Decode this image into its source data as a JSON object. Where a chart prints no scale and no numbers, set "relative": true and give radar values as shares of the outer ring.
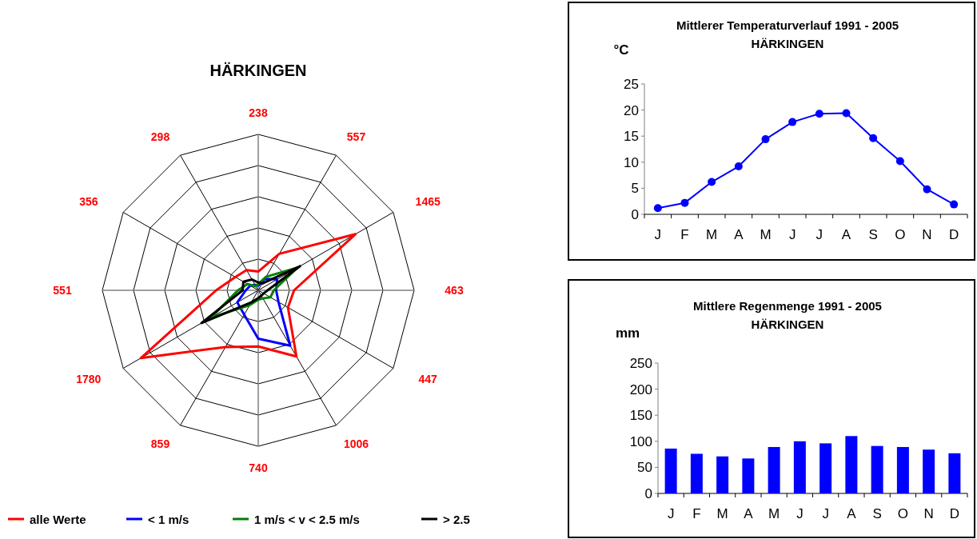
{
  "chart_data": [
    {
      "type": "radar",
      "title": "HÄRKINGEN",
      "categories": [
        "238",
        "557",
        "1465",
        "463",
        "447",
        "1006",
        "740",
        "859",
        "1780",
        "551",
        "356",
        "298"
      ],
      "relative": true,
      "legend": "bottom",
      "series": [
        {
          "name": "alle Werte",
          "color": "#ff0000",
          "values": [
            0.12,
            0.27,
            0.72,
            0.23,
            0.22,
            0.49,
            0.36,
            0.42,
            0.87,
            0.27,
            0.17,
            0.15
          ]
        },
        {
          "name": "< 1 m/s",
          "color": "#0000ff",
          "values": [
            0.03,
            0.085,
            0.14,
            0.115,
            0.15,
            0.41,
            0.31,
            0.18,
            0.155,
            0.08,
            0.06,
            0.04
          ]
        },
        {
          "name": "1 m/s < v < 2.5 m/s",
          "color": "#008000",
          "values": [
            0.04,
            0.1,
            0.29,
            0.1,
            0.09,
            0.06,
            0.06,
            0.11,
            0.35,
            0.13,
            0.08,
            0.03
          ]
        },
        {
          "name": "> 2.5",
          "color": "#000000",
          "values": [
            0.05,
            0.05,
            0.31,
            0.06,
            0.04,
            0.04,
            0.05,
            0.09,
            0.42,
            0.1,
            0.11,
            0.08
          ]
        }
      ]
    },
    {
      "type": "line",
      "title": "Mittlerer Temperaturverlauf 1991 - 2005",
      "subtitle": "HÄRKINGEN",
      "ylabel": "°C",
      "categories": [
        "J",
        "F",
        "M",
        "A",
        "M",
        "J",
        "J",
        "A",
        "S",
        "O",
        "N",
        "D"
      ],
      "ylim": [
        0,
        25
      ],
      "yticks": [
        0,
        5,
        10,
        15,
        20,
        25
      ],
      "marker": "circle",
      "series": [
        {
          "color": "#0000ff",
          "values": [
            1.2,
            2.2,
            6.2,
            9.2,
            14.4,
            17.7,
            19.3,
            19.4,
            14.6,
            10.2,
            4.8,
            1.9
          ]
        }
      ]
    },
    {
      "type": "bar",
      "title": "Mittlere Regenmenge 1991 - 2005",
      "subtitle": "HÄRKINGEN",
      "ylabel": "mm",
      "categories": [
        "J",
        "F",
        "M",
        "A",
        "M",
        "J",
        "J",
        "A",
        "S",
        "O",
        "N",
        "D"
      ],
      "ylim": [
        0,
        250
      ],
      "yticks": [
        0,
        50,
        100,
        150,
        200,
        250
      ],
      "series": [
        {
          "color": "#0000ff",
          "values": [
            86,
            76,
            71,
            67,
            89,
            100,
            96,
            110,
            91,
            89,
            84,
            77
          ]
        }
      ]
    }
  ]
}
